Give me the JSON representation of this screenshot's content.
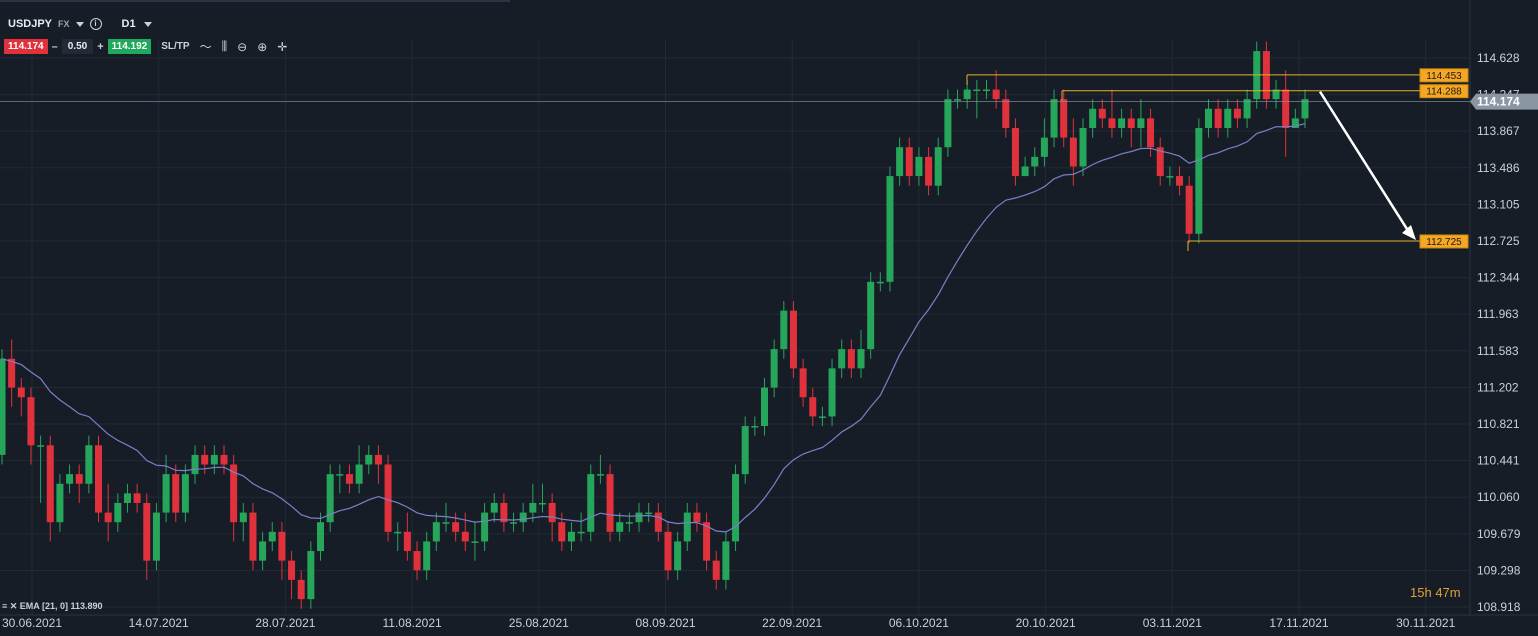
{
  "toolbar": {
    "symbol": "USDJPY",
    "market": "FX",
    "timeframe": "D1",
    "sell_price": "114.174",
    "lot_size": "0.50",
    "buy_price": "114.192",
    "sltp_label": "SL/TP",
    "minus": "–",
    "plus": "+"
  },
  "timer": {
    "hours": "15h",
    "minutes": "47m"
  },
  "indicator_label": "EMA [21, 0] 113.890",
  "colors": {
    "bg": "#171d26",
    "up": "#26a65b",
    "down": "#e0323c",
    "ema": "#7b80c8",
    "level": "#e0b030",
    "badge": "#f5a623"
  },
  "chart_data": {
    "type": "candlestick",
    "symbol": "USDJPY",
    "y_ticks": [
      114.628,
      114.247,
      113.867,
      113.486,
      113.105,
      112.725,
      112.344,
      111.963,
      111.583,
      111.202,
      110.821,
      110.441,
      110.06,
      109.679,
      109.298,
      108.918
    ],
    "x_ticks": [
      "30.06.2021",
      "14.07.2021",
      "28.07.2021",
      "11.08.2021",
      "25.08.2021",
      "08.09.2021",
      "22.09.2021",
      "06.10.2021",
      "20.10.2021",
      "03.11.2021",
      "17.11.2021",
      "30.11.2021"
    ],
    "ylim": [
      108.918,
      114.628
    ],
    "current_price": "114.174",
    "levels": [
      {
        "label": "114.453",
        "value": 114.453
      },
      {
        "label": "114.288",
        "value": 114.288
      },
      {
        "label": "112.725",
        "value": 112.725
      }
    ],
    "ema": {
      "period": 21,
      "value": 113.89
    },
    "candles": [
      [
        110.5,
        111.5,
        111.6,
        110.4
      ],
      [
        111.5,
        111.2,
        111.7,
        111.0
      ],
      [
        111.2,
        111.1,
        111.3,
        110.9
      ],
      [
        111.1,
        110.6,
        111.2,
        110.4
      ],
      [
        110.6,
        110.6,
        110.7,
        110.0
      ],
      [
        110.6,
        109.8,
        110.7,
        109.6
      ],
      [
        109.8,
        110.2,
        110.3,
        109.7
      ],
      [
        110.2,
        110.3,
        110.4,
        110.1
      ],
      [
        110.3,
        110.2,
        110.4,
        110.0
      ],
      [
        110.2,
        110.6,
        110.7,
        110.1
      ],
      [
        110.6,
        109.9,
        110.7,
        109.8
      ],
      [
        109.9,
        109.8,
        110.2,
        109.6
      ],
      [
        109.8,
        110.0,
        110.1,
        109.7
      ],
      [
        110.0,
        110.1,
        110.2,
        109.9
      ],
      [
        110.1,
        110.0,
        110.2,
        109.9
      ],
      [
        110.0,
        109.4,
        110.1,
        109.2
      ],
      [
        109.4,
        109.9,
        110.0,
        109.3
      ],
      [
        109.9,
        110.3,
        110.5,
        109.8
      ],
      [
        110.3,
        109.9,
        110.4,
        109.8
      ],
      [
        109.9,
        110.3,
        110.4,
        109.8
      ],
      [
        110.3,
        110.5,
        110.6,
        110.2
      ],
      [
        110.5,
        110.4,
        110.6,
        110.3
      ],
      [
        110.4,
        110.5,
        110.6,
        110.3
      ],
      [
        110.5,
        110.4,
        110.6,
        110.3
      ],
      [
        110.4,
        109.8,
        110.5,
        109.6
      ],
      [
        109.8,
        109.9,
        110.0,
        109.6
      ],
      [
        109.9,
        109.4,
        110.0,
        109.3
      ],
      [
        109.4,
        109.6,
        109.7,
        109.3
      ],
      [
        109.6,
        109.7,
        109.8,
        109.5
      ],
      [
        109.7,
        109.4,
        109.8,
        109.2
      ],
      [
        109.4,
        109.2,
        109.5,
        109.0
      ],
      [
        109.2,
        109.0,
        109.3,
        108.9
      ],
      [
        109.0,
        109.5,
        109.6,
        108.9
      ],
      [
        109.5,
        109.8,
        109.9,
        109.4
      ],
      [
        109.8,
        110.3,
        110.4,
        109.7
      ],
      [
        110.3,
        110.3,
        110.4,
        110.1
      ],
      [
        110.3,
        110.2,
        110.4,
        110.1
      ],
      [
        110.2,
        110.4,
        110.6,
        110.1
      ],
      [
        110.4,
        110.5,
        110.6,
        110.3
      ],
      [
        110.5,
        110.4,
        110.6,
        110.2
      ],
      [
        110.4,
        109.7,
        110.5,
        109.6
      ],
      [
        109.7,
        109.7,
        109.8,
        109.5
      ],
      [
        109.7,
        109.5,
        109.9,
        109.4
      ],
      [
        109.5,
        109.3,
        109.6,
        109.2
      ],
      [
        109.3,
        109.6,
        109.7,
        109.2
      ],
      [
        109.6,
        109.8,
        109.9,
        109.5
      ],
      [
        109.8,
        109.8,
        110.0,
        109.7
      ],
      [
        109.8,
        109.7,
        109.9,
        109.6
      ],
      [
        109.7,
        109.6,
        109.9,
        109.5
      ],
      [
        109.6,
        109.6,
        109.8,
        109.4
      ],
      [
        109.6,
        109.9,
        110.0,
        109.5
      ],
      [
        109.9,
        110.0,
        110.1,
        109.8
      ],
      [
        110.0,
        109.8,
        110.1,
        109.7
      ],
      [
        109.8,
        109.8,
        109.9,
        109.7
      ],
      [
        109.8,
        109.9,
        110.0,
        109.7
      ],
      [
        109.9,
        110.0,
        110.2,
        109.8
      ],
      [
        110.0,
        110.0,
        110.2,
        109.9
      ],
      [
        110.0,
        109.8,
        110.1,
        109.6
      ],
      [
        109.8,
        109.6,
        109.9,
        109.5
      ],
      [
        109.6,
        109.7,
        109.8,
        109.5
      ],
      [
        109.7,
        109.7,
        109.9,
        109.6
      ],
      [
        109.7,
        110.3,
        110.4,
        109.6
      ],
      [
        110.3,
        110.3,
        110.5,
        110.2
      ],
      [
        110.3,
        109.7,
        110.4,
        109.6
      ],
      [
        109.7,
        109.8,
        109.9,
        109.6
      ],
      [
        109.8,
        109.8,
        109.9,
        109.7
      ],
      [
        109.8,
        109.9,
        110.0,
        109.7
      ],
      [
        109.9,
        109.9,
        110.0,
        109.8
      ],
      [
        109.9,
        109.7,
        110.0,
        109.6
      ],
      [
        109.7,
        109.3,
        109.8,
        109.2
      ],
      [
        109.3,
        109.6,
        109.7,
        109.2
      ],
      [
        109.6,
        109.9,
        110.0,
        109.5
      ],
      [
        109.9,
        109.8,
        110.0,
        109.7
      ],
      [
        109.8,
        109.4,
        109.9,
        109.3
      ],
      [
        109.4,
        109.2,
        109.5,
        109.1
      ],
      [
        109.2,
        109.6,
        109.7,
        109.1
      ],
      [
        109.6,
        110.3,
        110.4,
        109.5
      ],
      [
        110.3,
        110.8,
        110.9,
        110.2
      ],
      [
        110.8,
        110.8,
        110.9,
        110.7
      ],
      [
        110.8,
        111.2,
        111.3,
        110.7
      ],
      [
        111.2,
        111.6,
        111.7,
        111.1
      ],
      [
        111.6,
        112.0,
        112.1,
        111.5
      ],
      [
        112.0,
        111.4,
        112.1,
        111.3
      ],
      [
        111.4,
        111.1,
        111.5,
        111.0
      ],
      [
        111.1,
        110.9,
        111.2,
        110.8
      ],
      [
        110.9,
        110.9,
        111.0,
        110.8
      ],
      [
        110.9,
        111.4,
        111.5,
        110.8
      ],
      [
        111.4,
        111.6,
        111.7,
        111.3
      ],
      [
        111.6,
        111.4,
        111.7,
        111.3
      ],
      [
        111.4,
        111.6,
        111.8,
        111.3
      ],
      [
        111.6,
        112.3,
        112.4,
        111.5
      ],
      [
        112.3,
        112.3,
        112.4,
        112.2
      ],
      [
        112.3,
        113.4,
        113.5,
        112.2
      ],
      [
        113.4,
        113.7,
        113.8,
        113.3
      ],
      [
        113.7,
        113.4,
        113.8,
        113.3
      ],
      [
        113.4,
        113.6,
        113.7,
        113.3
      ],
      [
        113.6,
        113.3,
        113.7,
        113.2
      ],
      [
        113.3,
        113.7,
        113.8,
        113.2
      ],
      [
        113.7,
        114.2,
        114.3,
        113.6
      ],
      [
        114.2,
        114.2,
        114.3,
        114.1
      ],
      [
        114.2,
        114.3,
        114.4,
        114.1
      ],
      [
        114.3,
        114.3,
        114.4,
        114.0
      ],
      [
        114.3,
        114.3,
        114.4,
        114.2
      ],
      [
        114.3,
        114.2,
        114.5,
        114.1
      ],
      [
        114.2,
        113.9,
        114.3,
        113.8
      ],
      [
        113.9,
        113.4,
        114.0,
        113.3
      ],
      [
        113.4,
        113.5,
        113.6,
        113.4
      ],
      [
        113.5,
        113.6,
        113.7,
        113.4
      ],
      [
        113.6,
        113.8,
        114.0,
        113.5
      ],
      [
        113.8,
        114.2,
        114.3,
        113.7
      ],
      [
        114.2,
        113.8,
        114.3,
        113.7
      ],
      [
        113.8,
        113.5,
        114.0,
        113.3
      ],
      [
        113.5,
        113.9,
        114.0,
        113.4
      ],
      [
        113.9,
        114.1,
        114.2,
        113.8
      ],
      [
        114.1,
        114.0,
        114.2,
        113.9
      ],
      [
        114.0,
        113.9,
        114.3,
        113.8
      ],
      [
        113.9,
        114.0,
        114.1,
        113.8
      ],
      [
        114.0,
        113.9,
        114.1,
        113.7
      ],
      [
        113.9,
        114.0,
        114.2,
        113.7
      ],
      [
        114.0,
        113.7,
        114.1,
        113.6
      ],
      [
        113.7,
        113.4,
        113.8,
        113.3
      ],
      [
        113.4,
        113.4,
        113.5,
        113.3
      ],
      [
        113.4,
        113.3,
        113.5,
        113.2
      ],
      [
        113.3,
        112.8,
        113.4,
        112.7
      ],
      [
        112.8,
        113.9,
        114.0,
        112.7
      ],
      [
        113.9,
        114.1,
        114.2,
        113.8
      ],
      [
        114.1,
        113.9,
        114.2,
        113.8
      ],
      [
        113.9,
        114.1,
        114.2,
        113.8
      ],
      [
        114.1,
        114.0,
        114.2,
        113.9
      ],
      [
        114.0,
        114.2,
        114.3,
        113.9
      ],
      [
        114.2,
        114.7,
        114.8,
        114.1
      ],
      [
        114.7,
        114.2,
        114.8,
        114.1
      ],
      [
        114.2,
        114.3,
        114.4,
        114.1
      ],
      [
        114.3,
        113.9,
        114.5,
        113.6
      ],
      [
        113.9,
        114.0,
        114.1,
        113.9
      ],
      [
        114.0,
        114.2,
        114.3,
        113.9
      ]
    ]
  }
}
